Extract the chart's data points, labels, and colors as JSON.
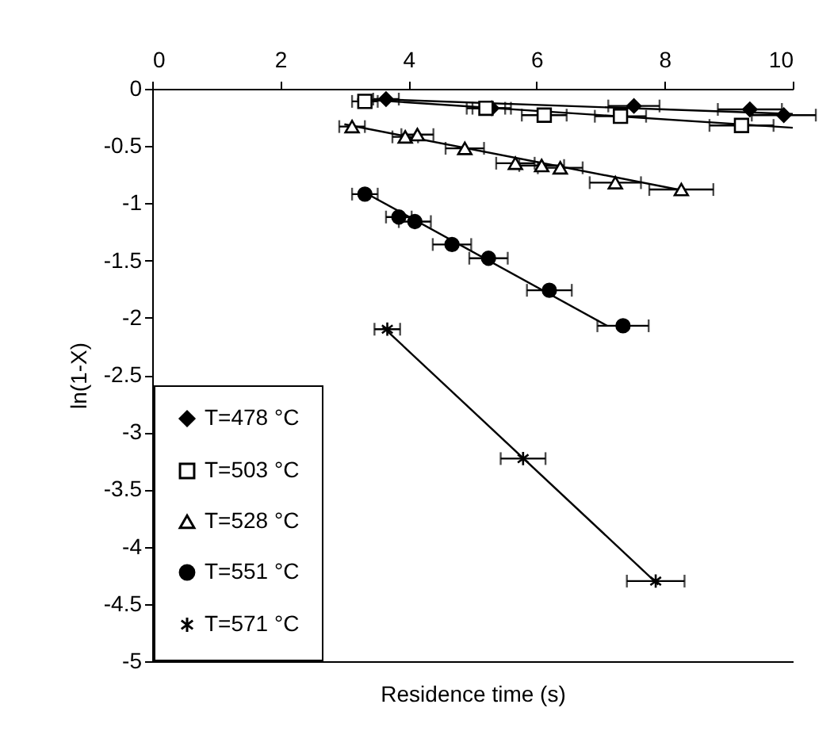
{
  "chart_data": {
    "type": "scatter",
    "xlabel": "Residence time (s)",
    "ylabel": "ln(1-X)",
    "xlim": [
      0,
      10
    ],
    "xticks": [
      0,
      2,
      4,
      6,
      8,
      10
    ],
    "ylim": [
      -5,
      0
    ],
    "yticks": [
      0,
      -0.5,
      -1,
      -1.5,
      -2,
      -2.5,
      -3,
      -3.5,
      -4,
      -4.5,
      -5
    ],
    "grid": false,
    "legend": "bottom left",
    "series": [
      {
        "name": "T=478 °C",
        "color": "#000000",
        "marker": "diamond",
        "x": [
          3.65,
          5.3,
          7.52,
          9.33,
          9.86
        ],
        "values": [
          -0.09,
          -0.17,
          -0.15,
          -0.18,
          -0.23
        ],
        "xerrors": [
          0.2,
          0.3,
          0.4,
          0.5,
          0.5
        ]
      },
      {
        "name": "T=503 °C",
        "color": "#000000",
        "marker": "square",
        "x": [
          3.32,
          5.21,
          6.12,
          7.31,
          9.2
        ],
        "values": [
          -0.11,
          -0.17,
          -0.23,
          -0.24,
          -0.32
        ],
        "xerrors": [
          0.2,
          0.3,
          0.35,
          0.4,
          0.5
        ]
      },
      {
        "name": "T=528 °C",
        "color": "#000000",
        "marker": "triangle",
        "x": [
          3.12,
          3.95,
          4.14,
          4.88,
          5.67,
          6.08,
          6.37,
          7.23,
          8.26
        ],
        "values": [
          -0.33,
          -0.42,
          -0.4,
          -0.52,
          -0.65,
          -0.67,
          -0.69,
          -0.82,
          -0.88
        ],
        "xerrors": [
          0.2,
          0.2,
          0.25,
          0.3,
          0.3,
          0.35,
          0.35,
          0.4,
          0.5
        ]
      },
      {
        "name": "T=551 °C",
        "color": "#000000",
        "marker": "circle",
        "x": [
          3.32,
          3.85,
          4.1,
          4.68,
          5.25,
          6.2,
          7.35
        ],
        "values": [
          -0.92,
          -1.12,
          -1.16,
          -1.36,
          -1.48,
          -1.76,
          -2.07
        ],
        "xerrors": [
          0.2,
          0.2,
          0.25,
          0.3,
          0.3,
          0.35,
          0.4
        ]
      },
      {
        "name": "T=571 °C",
        "color": "#000000",
        "marker": "cross",
        "x": [
          3.67,
          5.79,
          7.86
        ],
        "values": [
          -2.1,
          -3.23,
          -4.3
        ],
        "xerrors": [
          0.2,
          0.35,
          0.45
        ]
      },
      {
        "type": "line",
        "color": "#000000",
        "x": [
          3.5,
          10
        ],
        "values": [
          -0.09,
          -0.22
        ]
      },
      {
        "type": "line",
        "color": "#000000",
        "x": [
          3.2,
          10
        ],
        "values": [
          -0.09,
          -0.34
        ]
      },
      {
        "type": "line",
        "color": "#000000",
        "x": [
          3.0,
          8.3
        ],
        "values": [
          -0.31,
          -0.89
        ]
      },
      {
        "type": "line",
        "color": "#000000",
        "x": [
          3.3,
          7.1
        ],
        "values": [
          -0.9,
          -2.07
        ]
      },
      {
        "type": "line",
        "color": "#000000",
        "x": [
          3.6,
          7.9
        ],
        "values": [
          -2.08,
          -4.33
        ]
      }
    ]
  }
}
